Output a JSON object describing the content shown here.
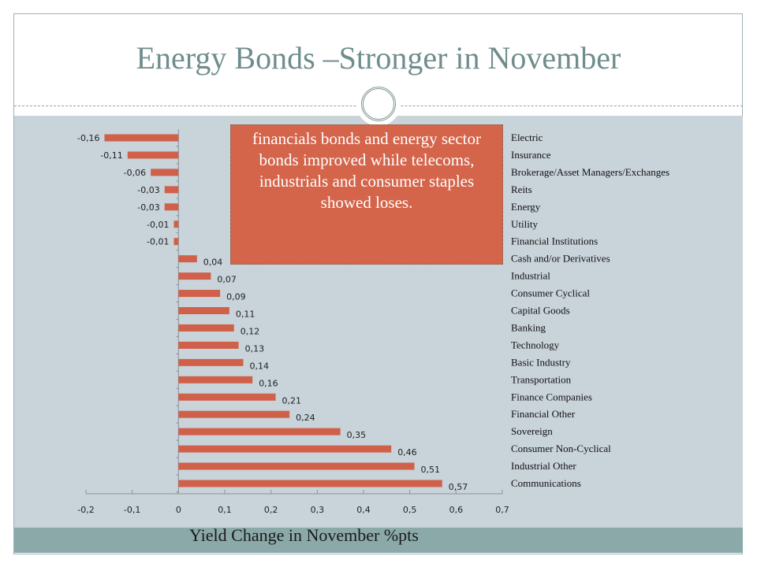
{
  "title": "Energy Bonds –Stronger in November",
  "note": "financials bonds and energy sector bonds improved while telecoms, industrials and consumer staples showed loses.",
  "chart_data": {
    "type": "bar",
    "orientation": "horizontal",
    "xlabel": "Yield Change in November %pts",
    "xlim": [
      -0.2,
      0.7
    ],
    "xticks": [
      "-0,2",
      "-0,1",
      "0",
      "0,1",
      "0,2",
      "0,3",
      "0,4",
      "0,5",
      "0,6",
      "0,7"
    ],
    "categories": [
      "Electric",
      "Insurance",
      "Brokerage/Asset Managers/Exchanges",
      "Reits",
      "Energy",
      "Utility",
      "Financial Institutions",
      "Cash and/or Derivatives",
      "Industrial",
      "Consumer Cyclical",
      "Capital Goods",
      "Banking",
      "Technology",
      "Basic Industry",
      "Transportation",
      "Finance Companies",
      "Financial Other",
      "Sovereign",
      "Consumer Non-Cyclical",
      "Industrial Other",
      "Communications"
    ],
    "values": [
      -0.16,
      -0.11,
      -0.06,
      -0.03,
      -0.03,
      -0.01,
      -0.01,
      0.04,
      0.07,
      0.09,
      0.11,
      0.12,
      0.13,
      0.14,
      0.16,
      0.21,
      0.24,
      0.35,
      0.46,
      0.51,
      0.57
    ],
    "data_labels": [
      "-0,16",
      "-0,11",
      "-0,06",
      "-0,03",
      "-0,03",
      "-0,01",
      "-0,01",
      "0,04",
      "0,07",
      "0,09",
      "0,11",
      "0,12",
      "0,13",
      "0,14",
      "0,16",
      "0,21",
      "0,24",
      "0,35",
      "0,46",
      "0,51",
      "0,57"
    ],
    "grid": false,
    "legend": "none"
  },
  "colors": {
    "bar": "#d0604a",
    "background": "#c8d3da",
    "accent": "#8aa9a8",
    "title": "#6f8d8c"
  }
}
